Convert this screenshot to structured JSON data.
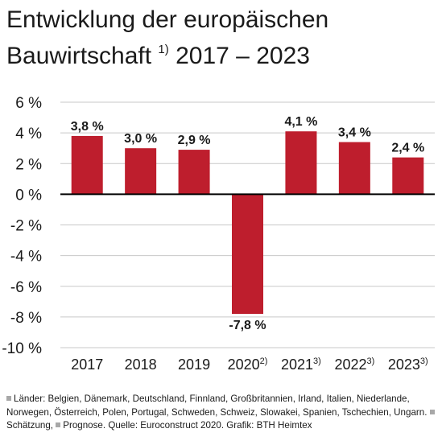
{
  "title": {
    "line1": "Entwicklung der europäischen",
    "line2": "Bauwirtschaft",
    "sup": "1)",
    "range": "2017 – 2023"
  },
  "chart_data": {
    "type": "bar",
    "title": "Entwicklung der europäischen Bauwirtschaft 1) 2017 – 2023",
    "categories": [
      "2017",
      "2018",
      "2019",
      "2020",
      "2021",
      "2022",
      "2023"
    ],
    "category_marks": [
      "",
      "",
      "",
      "2)",
      "3)",
      "3)",
      "3)"
    ],
    "values": [
      3.8,
      3.0,
      2.9,
      -7.8,
      4.1,
      3.4,
      2.4
    ],
    "value_labels": [
      "3,8 %",
      "3,0 %",
      "2,9 %",
      "-7,8 %",
      "4,1 %",
      "3,4 %",
      "2,4 %"
    ],
    "y_ticks": [
      6,
      4,
      2,
      0,
      -2,
      -4,
      -6,
      -8,
      -10
    ],
    "y_tick_labels": [
      "6 %",
      "4 %",
      "2 %",
      "0 %",
      "-2 %",
      "-4 %",
      "-6 %",
      "-8 %",
      "-10 %"
    ],
    "ylim": [
      -10,
      6
    ],
    "xlabel": "",
    "ylabel": "",
    "grid": true,
    "colors": {
      "bar": "#be1e2d",
      "grid": "#c8c8c8",
      "axis": "#000000"
    }
  },
  "footnote": {
    "part1": "Länder: Belgien, Dänemark, Deutschland, Finnland, Großbritannien, Irland, Italien, Niederlande, Norwegen, Österreich, Polen, Portugal, Schweden, Schweiz, Slowakei, Spanien, Tschechien, Ungarn.",
    "part2": "Schätzung,",
    "part3": "Prognose. Quelle: Euroconstruct 2020. Grafik: BTH Heimtex"
  }
}
